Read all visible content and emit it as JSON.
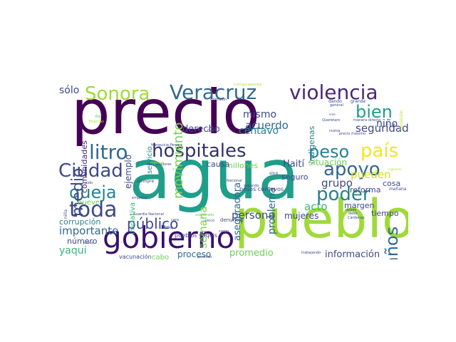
{
  "palette": [
    "#440154",
    "#482878",
    "#3e4989",
    "#31688e",
    "#26828e",
    "#1f9e89",
    "#35b779",
    "#6ece58",
    "#b5de2b",
    "#fde725"
  ],
  "words": [
    {
      "text": "agua",
      "color": "#1f9e89"
    },
    {
      "text": "precio",
      "color": "#440154"
    },
    {
      "text": "pueblo",
      "color": "#a0da39"
    },
    {
      "text": "gobierno",
      "color": "#3b0f70"
    },
    {
      "text": "violencia",
      "color": "#482878"
    },
    {
      "text": "Veracruz",
      "color": "#31688e"
    },
    {
      "text": "Sonora",
      "color": "#a0da39"
    },
    {
      "text": "hospitales",
      "color": "#30336b"
    },
    {
      "text": "toda",
      "color": "#3e4989"
    },
    {
      "text": "Ciudad",
      "color": "#3e4989"
    },
    {
      "text": "litro",
      "color": "#31688e"
    },
    {
      "text": "apoyo",
      "color": "#31688e"
    },
    {
      "text": "poder",
      "color": "#26828e"
    },
    {
      "text": "peso",
      "color": "#26828e"
    },
    {
      "text": "país",
      "color": "#f5e51a"
    },
    {
      "text": "bien",
      "color": "#1f9e89"
    },
    {
      "text": "queja",
      "color": "#26828e"
    },
    {
      "text": "medio",
      "color": "#3e4989"
    },
    {
      "text": "años",
      "color": "#31688e"
    },
    {
      "text": "público",
      "color": "#3e4989"
    },
    {
      "text": "movimiento",
      "color": "#7ad151"
    },
    {
      "text": "mismo",
      "color": "#3e4989"
    },
    {
      "text": "acuerdo",
      "color": "#31688e"
    },
    {
      "text": "centavo",
      "color": "#26828e"
    },
    {
      "text": "seguridad",
      "color": "#3e4989"
    },
    {
      "text": "niño",
      "color": "#3e4989"
    },
    {
      "text": "pueden",
      "color": "#d2e21b"
    },
    {
      "text": "grupo",
      "color": "#3e4989"
    },
    {
      "text": "acto",
      "color": "#35b779"
    },
    {
      "text": "persona",
      "color": "#3e4989"
    },
    {
      "text": "importante",
      "color": "#31688e"
    },
    {
      "text": "yaqui",
      "color": "#35b779"
    },
    {
      "text": "información",
      "color": "#3e4989"
    },
    {
      "text": "promedio",
      "color": "#6ece58"
    },
    {
      "text": "mujeres",
      "color": "#3e4989"
    },
    {
      "text": "sólo",
      "color": "#3e4989"
    },
    {
      "text": "ejemplo",
      "color": "#3e4989"
    },
    {
      "text": "comunidades",
      "color": "#482878"
    },
    {
      "text": "derecho",
      "color": "#3e4989"
    },
    {
      "text": "problema",
      "color": "#31688e"
    },
    {
      "text": "semana",
      "color": "#7ad151"
    },
    {
      "text": "aseguradora",
      "color": "#31688e"
    },
    {
      "text": "indígenas",
      "color": "#26828e"
    },
    {
      "text": "Haití",
      "color": "#3e4989"
    },
    {
      "text": "situación",
      "color": "#6ece58"
    },
    {
      "text": "reforma",
      "color": "#3e4989"
    },
    {
      "text": "proceso",
      "color": "#31688e"
    },
    {
      "text": "número",
      "color": "#3e4989"
    },
    {
      "text": "corrupción",
      "color": "#26828e"
    },
    {
      "text": "millones",
      "color": "#6ece58"
    },
    {
      "text": "causa",
      "color": "#3e4989"
    },
    {
      "text": "seguro",
      "color": "#3e4989"
    },
    {
      "text": "cosa",
      "color": "#3e4989"
    },
    {
      "text": "margen",
      "color": "#3e4989"
    },
    {
      "text": "tiempo",
      "color": "#3e4989"
    },
    {
      "text": "servicio",
      "color": "#26828e"
    },
    {
      "text": "iniciativa",
      "color": "#35b779"
    },
    {
      "text": "nueve",
      "color": "#6ece58"
    },
    {
      "text": "cabo",
      "color": "#6ece58"
    },
    {
      "text": "zona",
      "color": "#3e4989"
    },
    {
      "text": "pueblos yaquis",
      "color": "#3e4989"
    },
    {
      "text": "pesos centavos",
      "color": "#3e4989"
    },
    {
      "text": "denuncia",
      "color": "#3e4989"
    },
    {
      "text": "vacunación",
      "color": "#3e4989"
    },
    {
      "text": "permiso",
      "color": "#3e4989"
    },
    {
      "text": "trabajando",
      "color": "#3e4989"
    },
    {
      "text": "siempre",
      "color": "#3e4989"
    },
    {
      "text": "franquicia Pemex",
      "color": "#3e4989"
    },
    {
      "text": "Gas",
      "color": "#3e4989"
    },
    {
      "text": "Guardia Nacional",
      "color": "#3e4989"
    },
    {
      "text": "precio máximo",
      "color": "#3e4989"
    },
    {
      "text": "Querétaro",
      "color": "#3e4989"
    },
    {
      "text": "grande",
      "color": "#3e4989"
    },
    {
      "text": "dando",
      "color": "#3e4989"
    },
    {
      "text": "general",
      "color": "#3e4989"
    },
    {
      "text": "oposición",
      "color": "#b5de2b"
    },
    {
      "text": "Comisión",
      "color": "#3e4989"
    },
    {
      "text": "compradores",
      "color": "#b5de2b"
    },
    {
      "text": "segundo",
      "color": "#3e4989"
    },
    {
      "text": "sino",
      "color": "#3e4989"
    },
    {
      "text": "mañana",
      "color": "#3e4989"
    },
    {
      "text": "debe",
      "color": "#3e4989"
    },
    {
      "text": "consumidores",
      "color": "#3e4989"
    },
    {
      "text": "dar",
      "color": "#6ece58"
    },
    {
      "text": "sido",
      "color": "#3e4989"
    },
    {
      "text": "niña",
      "color": "#3e4989"
    },
    {
      "text": "justicia",
      "color": "#3e4989"
    },
    {
      "text": "debes",
      "color": "#3e4989"
    },
    {
      "text": "Cárdenas",
      "color": "#3e4989"
    },
    {
      "text": "cargo",
      "color": "#3e4989"
    },
    {
      "text": "asegurado",
      "color": "#6ece58"
    },
    {
      "text": "cinco",
      "color": "#3e4989"
    },
    {
      "text": "empresa",
      "color": "#3e4989"
    },
    {
      "text": "Nacional",
      "color": "#3e4989"
    },
    {
      "text": "nueva",
      "color": "#3e4989"
    },
    {
      "text": "ingeniero",
      "color": "#b5de2b"
    },
    {
      "text": "cree",
      "color": "#3e4989"
    },
    {
      "text": "finanzas",
      "color": "#b5de2b"
    },
    {
      "text": "ingreso",
      "color": "#b5de2b"
    },
    {
      "text": "cara",
      "color": "#3e4989"
    },
    {
      "text": "manera directa",
      "color": "#3e4989"
    }
  ]
}
